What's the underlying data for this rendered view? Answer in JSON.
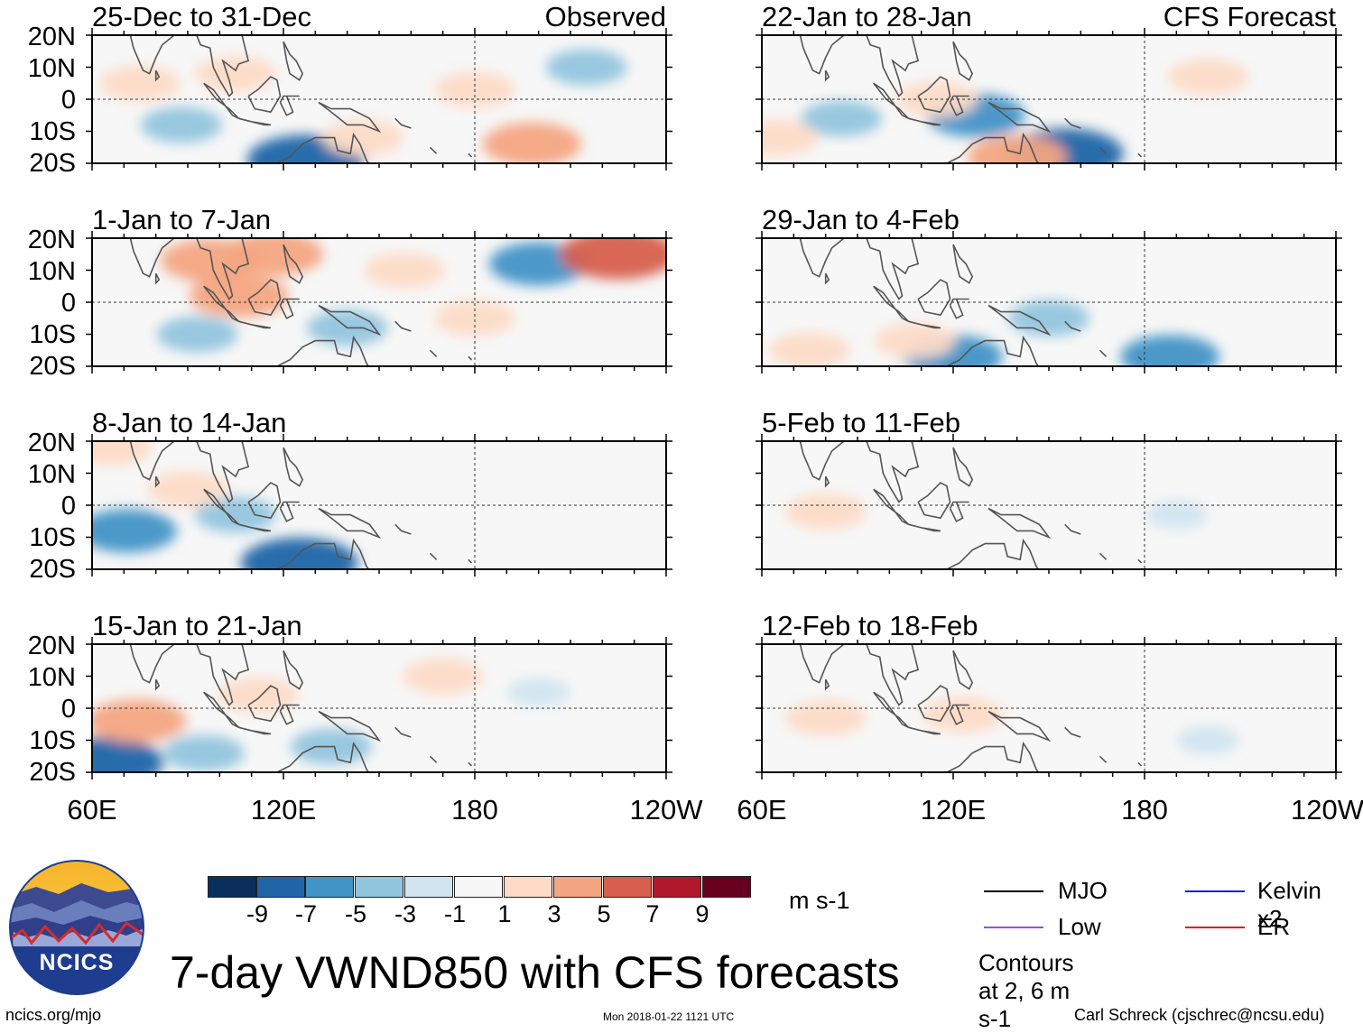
{
  "chart_data": {
    "type": "heatmap",
    "title": "7-day VWND850 with CFS forecasts",
    "variable": "VWND850",
    "units": "m s-1",
    "observed_label": "Observed",
    "forecast_label": "CFS Forecast",
    "x_ticks": [
      "60E",
      "120E",
      "180",
      "120W"
    ],
    "y_ticks": [
      "20N",
      "10N",
      "0",
      "10S",
      "20S"
    ],
    "xlim_deg_east": [
      60,
      240
    ],
    "ylim_deg_lat": [
      -20,
      20
    ],
    "colorbar": {
      "levels": [
        "-9",
        "-7",
        "-5",
        "-3",
        "-1",
        "1",
        "3",
        "5",
        "7",
        "9"
      ],
      "colors": [
        "#0a2f5c",
        "#1f65a8",
        "#4294c7",
        "#92c5de",
        "#d1e5f0",
        "#f7f7f7",
        "#fddbc7",
        "#f4a582",
        "#d6604d",
        "#b2182b",
        "#67001f"
      ]
    },
    "legend": [
      {
        "label": "MJO",
        "color": "#000000"
      },
      {
        "label": "Kelvin x2",
        "color": "#1a1aff"
      },
      {
        "label": "Low",
        "color": "#9c4ce0"
      },
      {
        "label": "ER",
        "color": "#e8141b"
      }
    ],
    "contour_note": "Contours at 2, 6 m s-1",
    "panels": [
      {
        "period": "25-Dec to 31-Dec",
        "kind": "observed",
        "anomalies": [
          {
            "lon": 88,
            "lat": -8,
            "value": -3
          },
          {
            "lon": 105,
            "lat": 8,
            "value": 3
          },
          {
            "lon": 127,
            "lat": -19,
            "value": -7
          },
          {
            "lon": 145,
            "lat": -12,
            "value": 3
          },
          {
            "lon": 160,
            "lat": 12,
            "value": 1
          },
          {
            "lon": 180,
            "lat": 3,
            "value": 3
          },
          {
            "lon": 198,
            "lat": -14,
            "value": 5
          },
          {
            "lon": 215,
            "lat": 10,
            "value": -3
          },
          {
            "lon": 75,
            "lat": 5,
            "value": 3
          }
        ]
      },
      {
        "period": "1-Jan to 7-Jan",
        "kind": "observed",
        "anomalies": [
          {
            "lon": 97,
            "lat": 13,
            "value": 5
          },
          {
            "lon": 106,
            "lat": 2,
            "value": 5
          },
          {
            "lon": 117,
            "lat": 15,
            "value": 5
          },
          {
            "lon": 93,
            "lat": -10,
            "value": -3
          },
          {
            "lon": 158,
            "lat": 10,
            "value": 3
          },
          {
            "lon": 200,
            "lat": 12,
            "value": -5
          },
          {
            "lon": 225,
            "lat": 15,
            "value": 7
          },
          {
            "lon": 180,
            "lat": -5,
            "value": 3
          },
          {
            "lon": 140,
            "lat": -8,
            "value": -3
          }
        ]
      },
      {
        "period": "8-Jan to 14-Jan",
        "kind": "observed",
        "anomalies": [
          {
            "lon": 71,
            "lat": -8,
            "value": -5
          },
          {
            "lon": 66,
            "lat": 18,
            "value": 3
          },
          {
            "lon": 105,
            "lat": -3,
            "value": -3
          },
          {
            "lon": 125,
            "lat": -18,
            "value": -7
          },
          {
            "lon": 150,
            "lat": 5,
            "value": 1
          },
          {
            "lon": 200,
            "lat": -8,
            "value": 1
          },
          {
            "lon": 90,
            "lat": 5,
            "value": 3
          }
        ]
      },
      {
        "period": "15-Jan to 21-Jan",
        "kind": "observed",
        "anomalies": [
          {
            "lon": 64,
            "lat": -17,
            "value": -7
          },
          {
            "lon": 74,
            "lat": -4,
            "value": 5
          },
          {
            "lon": 112,
            "lat": 4,
            "value": 3
          },
          {
            "lon": 170,
            "lat": 10,
            "value": 3
          },
          {
            "lon": 135,
            "lat": -12,
            "value": -3
          },
          {
            "lon": 95,
            "lat": -14,
            "value": -3
          },
          {
            "lon": 200,
            "lat": 5,
            "value": -1
          }
        ]
      },
      {
        "period": "22-Jan to 28-Jan",
        "kind": "forecast",
        "anomalies": [
          {
            "lon": 127,
            "lat": -5,
            "value": -5
          },
          {
            "lon": 155,
            "lat": -17,
            "value": -7
          },
          {
            "lon": 140,
            "lat": -18,
            "value": 5
          },
          {
            "lon": 115,
            "lat": 0,
            "value": 3
          },
          {
            "lon": 200,
            "lat": 7,
            "value": 3
          },
          {
            "lon": 85,
            "lat": -6,
            "value": -3
          },
          {
            "lon": 65,
            "lat": -12,
            "value": 3
          }
        ]
      },
      {
        "period": "29-Jan to 4-Feb",
        "kind": "forecast",
        "anomalies": [
          {
            "lon": 75,
            "lat": -15,
            "value": 3
          },
          {
            "lon": 120,
            "lat": -17,
            "value": -5
          },
          {
            "lon": 108,
            "lat": -12,
            "value": 3
          },
          {
            "lon": 188,
            "lat": -17,
            "value": -5
          },
          {
            "lon": 205,
            "lat": 8,
            "value": 1
          },
          {
            "lon": 150,
            "lat": -5,
            "value": -3
          }
        ]
      },
      {
        "period": "5-Feb to 11-Feb",
        "kind": "forecast",
        "anomalies": [
          {
            "lon": 80,
            "lat": -2,
            "value": 3
          },
          {
            "lon": 190,
            "lat": -3,
            "value": -1
          },
          {
            "lon": 110,
            "lat": -10,
            "value": 1
          },
          {
            "lon": 150,
            "lat": 5,
            "value": 1
          }
        ]
      },
      {
        "period": "12-Feb to 18-Feb",
        "kind": "forecast",
        "anomalies": [
          {
            "lon": 80,
            "lat": -3,
            "value": 3
          },
          {
            "lon": 123,
            "lat": -2,
            "value": 3
          },
          {
            "lon": 200,
            "lat": -10,
            "value": -1
          },
          {
            "lon": 140,
            "lat": 8,
            "value": 1
          }
        ]
      }
    ]
  },
  "logo": {
    "text": "NCICS"
  },
  "footer": {
    "url": "ncics.org/mjo",
    "timestamp": "Mon 2018-01-22 1121 UTC",
    "credit": "Carl Schreck (cjschrec@ncsu.edu)"
  }
}
